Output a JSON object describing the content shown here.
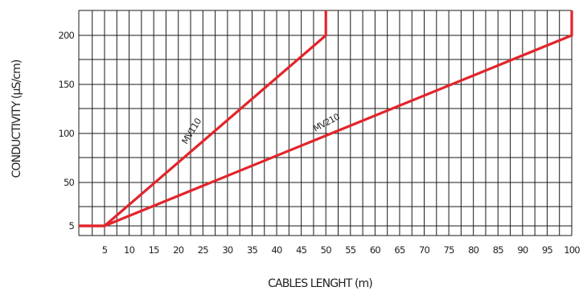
{
  "chart_data": {
    "type": "line",
    "title": "",
    "xlabel": "CABLES LENGHT (m)",
    "ylabel": "CONDUCTIVITY (µS/cm)",
    "xlim": [
      0,
      100
    ],
    "ylim": [
      0,
      225
    ],
    "grid": true,
    "x_ticks": [
      5,
      10,
      15,
      20,
      25,
      30,
      35,
      40,
      45,
      50,
      55,
      60,
      65,
      70,
      75,
      80,
      85,
      90,
      95,
      100
    ],
    "y_ticks": [
      5,
      50,
      100,
      150,
      200
    ],
    "series": [
      {
        "name": "MV110",
        "color": "#e3242b",
        "points": [
          [
            0,
            5
          ],
          [
            5,
            5
          ],
          [
            50,
            200
          ],
          [
            50,
            225
          ]
        ]
      },
      {
        "name": "MV210",
        "color": "#e3242b",
        "points": [
          [
            0,
            5
          ],
          [
            5,
            5
          ],
          [
            100,
            200
          ],
          [
            100,
            225
          ]
        ]
      }
    ]
  }
}
